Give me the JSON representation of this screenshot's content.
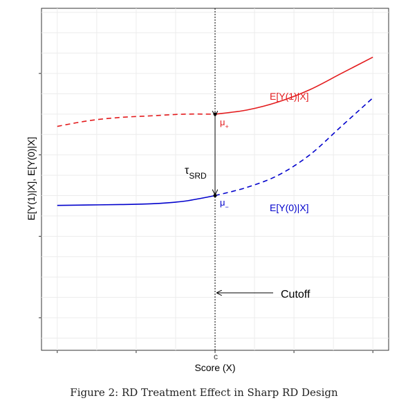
{
  "chart_data": {
    "type": "line",
    "title": "",
    "xlabel": "Score (X)",
    "ylabel": "E[Y(1)|X], E[Y(0)|X]",
    "x_tick_labels": [
      "",
      "",
      "c",
      "",
      ""
    ],
    "cutoff_label": "c",
    "xlim": [
      -1.1,
      1.1
    ],
    "ylim": [
      -1.9,
      2.3
    ],
    "grid": true,
    "legend": "none",
    "series": [
      {
        "name": "E[Y(1)|X]",
        "color": "#e31a1c",
        "x": [
          -1.0,
          -0.8,
          -0.6,
          -0.4,
          -0.2,
          0.0,
          0.2,
          0.4,
          0.6,
          0.8,
          1.0
        ],
        "y": [
          0.85,
          0.92,
          0.96,
          0.98,
          1.0,
          1.0,
          1.05,
          1.15,
          1.3,
          1.5,
          1.7
        ],
        "dashed_side": "left"
      },
      {
        "name": "E[Y(0)|X]",
        "color": "#0000cc",
        "x": [
          -1.0,
          -0.8,
          -0.6,
          -0.4,
          -0.2,
          0.0,
          0.2,
          0.4,
          0.6,
          0.8,
          1.0
        ],
        "y": [
          -0.12,
          -0.115,
          -0.11,
          -0.1,
          -0.07,
          0.0,
          0.1,
          0.25,
          0.5,
          0.85,
          1.2
        ],
        "dashed_side": "right"
      }
    ],
    "annotations": {
      "mu_plus": "μ+",
      "mu_minus": "μ−",
      "tau": "τSRD",
      "cutoff": "Cutoff"
    }
  },
  "caption": "Figure 2: RD Treatment Effect in Sharp RD Design"
}
